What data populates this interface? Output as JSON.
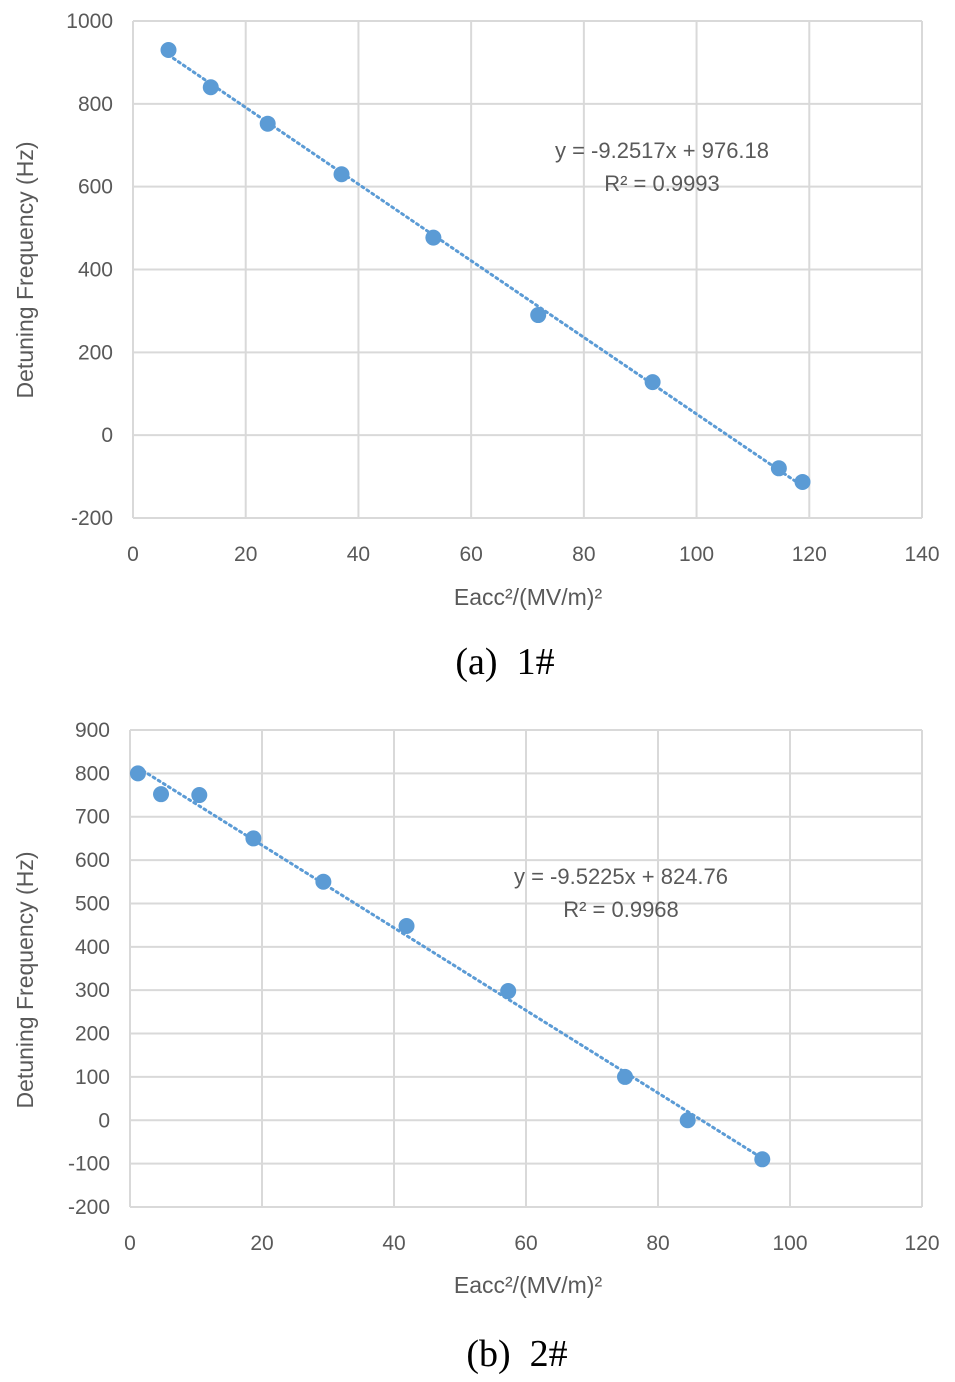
{
  "chart_data": [
    {
      "type": "scatter",
      "caption": "(a)  1#",
      "xlabel": "Eacc²/(MV/m)²",
      "ylabel": "Detuning Frequency (Hz)",
      "xlim": [
        0,
        140
      ],
      "ylim": [
        -200,
        1000
      ],
      "x_ticks": [
        0,
        20,
        40,
        60,
        80,
        100,
        120,
        140
      ],
      "y_ticks": [
        -200,
        0,
        200,
        400,
        600,
        800,
        1000
      ],
      "grid": true,
      "trendline": {
        "type": "linear",
        "slope": -9.2517,
        "intercept": 976.18
      },
      "equation": "y = -9.2517x + 976.18",
      "r_squared": "R² = 0.9993",
      "marker_color": "#5B9BD5",
      "series": [
        {
          "x": [
            6.3,
            13.8,
            23.9,
            37.0,
            53.3,
            71.9,
            92.2,
            114.6,
            118.8
          ],
          "y": [
            930,
            840,
            752,
            630,
            477,
            290,
            128,
            -80,
            -113
          ]
        }
      ]
    },
    {
      "type": "scatter",
      "caption": "(b)  2#",
      "xlabel": "Eacc²/(MV/m)²",
      "ylabel": "Detuning Frequency (Hz)",
      "xlim": [
        0,
        120
      ],
      "ylim": [
        -200,
        900
      ],
      "x_ticks": [
        0,
        20,
        40,
        60,
        80,
        100,
        120
      ],
      "y_ticks": [
        -200,
        -100,
        0,
        100,
        200,
        300,
        400,
        500,
        600,
        700,
        800,
        900
      ],
      "grid": true,
      "trendline": {
        "type": "linear",
        "slope": -9.5225,
        "intercept": 824.76
      },
      "equation": "y = -9.5225x + 824.76",
      "r_squared": "R² = 0.9968",
      "marker_color": "#5B9BD5",
      "series": [
        {
          "x": [
            1.2,
            4.7,
            10.5,
            18.7,
            29.3,
            41.9,
            57.3,
            75.0,
            84.5,
            95.8
          ],
          "y": [
            800,
            752,
            750,
            650,
            550,
            448,
            298,
            100,
            0,
            -90
          ]
        }
      ]
    }
  ]
}
